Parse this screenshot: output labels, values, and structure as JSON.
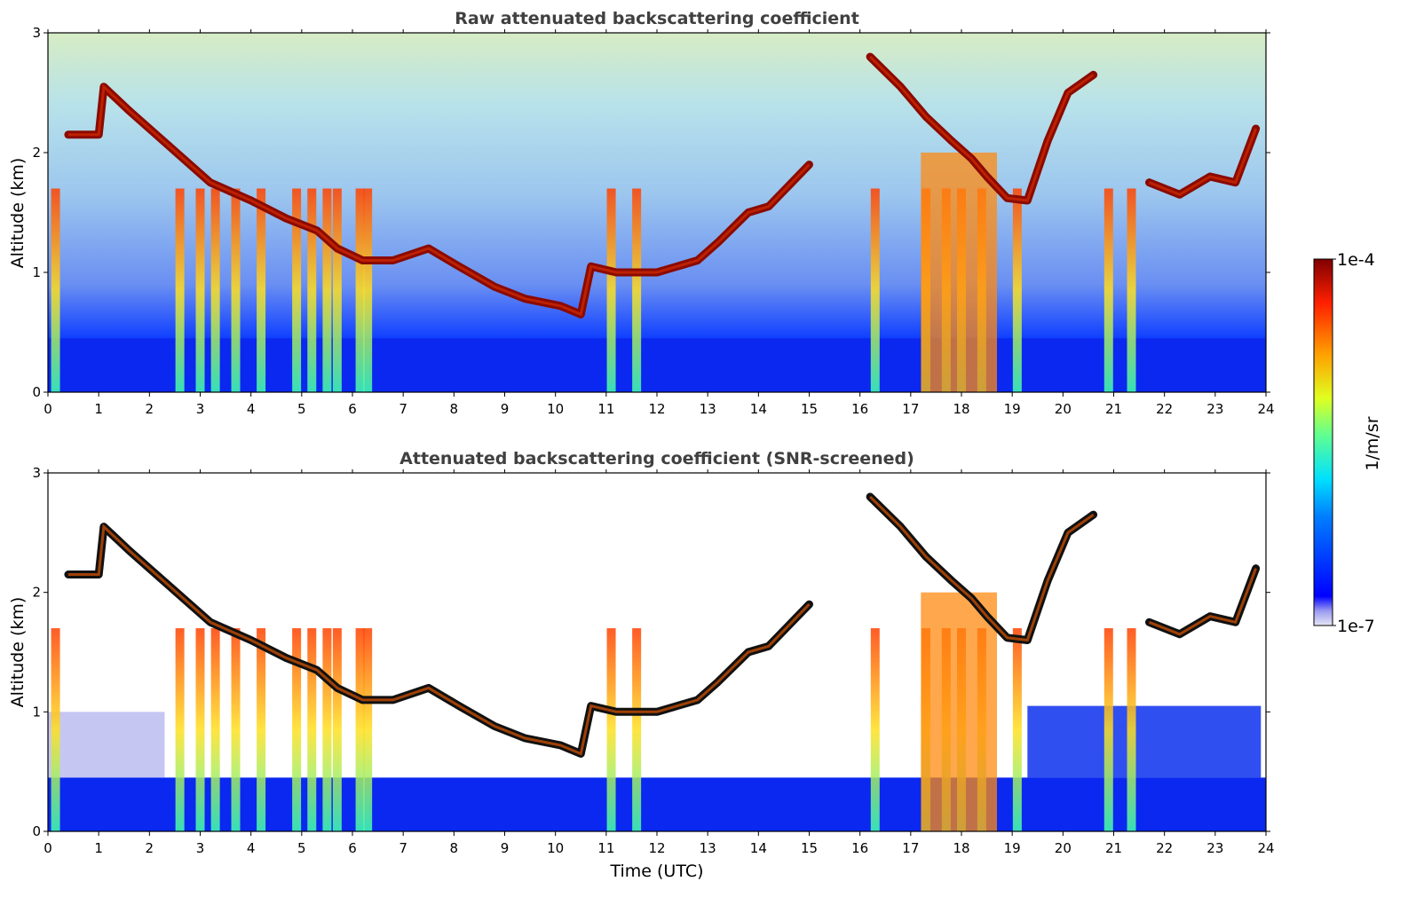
{
  "chart_data": [
    {
      "type": "heatmap",
      "title": "Raw attenuated backscattering coefficient",
      "xlabel": "",
      "ylabel": "Altitude (km)",
      "xlim": [
        0,
        24
      ],
      "ylim": [
        0,
        3
      ],
      "x_ticks": [
        "0",
        "1",
        "2",
        "3",
        "4",
        "5",
        "6",
        "7",
        "8",
        "9",
        "10",
        "11",
        "12",
        "13",
        "14",
        "15",
        "16",
        "17",
        "18",
        "19",
        "20",
        "21",
        "22",
        "23",
        "24"
      ],
      "y_ticks": [
        "0",
        "1",
        "2",
        "3"
      ],
      "features": {
        "cloud_layer": {
          "description_values": "time (h), altitude (km) of strong backscatter layer",
          "points": [
            [
              0.4,
              2.15
            ],
            [
              1.0,
              2.15
            ],
            [
              1.1,
              2.55
            ],
            [
              1.6,
              2.35
            ],
            [
              2.4,
              2.05
            ],
            [
              3.2,
              1.75
            ],
            [
              4.0,
              1.6
            ],
            [
              4.7,
              1.45
            ],
            [
              5.3,
              1.35
            ],
            [
              5.7,
              1.2
            ],
            [
              6.2,
              1.1
            ],
            [
              6.8,
              1.1
            ],
            [
              7.5,
              1.2
            ],
            [
              8.1,
              1.05
            ],
            [
              8.8,
              0.88
            ],
            [
              9.4,
              0.78
            ],
            [
              10.1,
              0.72
            ],
            [
              10.5,
              0.65
            ],
            [
              10.7,
              1.05
            ],
            [
              11.2,
              1.0
            ],
            [
              12.0,
              1.0
            ],
            [
              12.8,
              1.1
            ],
            [
              13.2,
              1.25
            ],
            [
              13.8,
              1.5
            ],
            [
              14.2,
              1.55
            ],
            [
              15.0,
              1.9
            ]
          ]
        },
        "upper_layer": {
          "points": [
            [
              16.2,
              2.8
            ],
            [
              16.8,
              2.55
            ],
            [
              17.3,
              2.3
            ],
            [
              17.8,
              2.1
            ],
            [
              18.2,
              1.95
            ],
            [
              18.5,
              1.8
            ],
            [
              18.9,
              1.62
            ],
            [
              19.3,
              1.6
            ],
            [
              19.7,
              2.1
            ],
            [
              20.1,
              2.5
            ],
            [
              20.6,
              2.65
            ]
          ]
        },
        "late_layer": {
          "points": [
            [
              21.7,
              1.75
            ],
            [
              22.3,
              1.65
            ],
            [
              22.9,
              1.8
            ],
            [
              23.4,
              1.75
            ],
            [
              23.8,
              2.2
            ]
          ]
        },
        "fall_streaks": [
          0.15,
          2.6,
          3.0,
          3.3,
          3.7,
          4.2,
          4.9,
          5.2,
          5.5,
          5.7,
          6.15,
          6.3,
          11.1,
          11.6,
          16.3,
          17.3,
          17.7,
          18.0,
          18.4,
          19.1,
          20.9,
          21.35
        ],
        "boundary_layer_top_km": 0.45
      }
    },
    {
      "type": "heatmap",
      "title": "Attenuated backscattering coefficient (SNR-screened)",
      "xlabel": "Time (UTC)",
      "ylabel": "Altitude (km)",
      "xlim": [
        0,
        24
      ],
      "ylim": [
        0,
        3
      ],
      "x_ticks": [
        "0",
        "1",
        "2",
        "3",
        "4",
        "5",
        "6",
        "7",
        "8",
        "9",
        "10",
        "11",
        "12",
        "13",
        "14",
        "15",
        "16",
        "17",
        "18",
        "19",
        "20",
        "21",
        "22",
        "23",
        "24"
      ],
      "y_ticks": [
        "0",
        "1",
        "2",
        "3"
      ]
    }
  ],
  "colorbar": {
    "label": "1/m/sr",
    "max_label": "1e-4",
    "min_label": "1e-7",
    "colormap": "jet",
    "scale": "log"
  },
  "colors": {
    "title": "#404040",
    "background": "#ffffff"
  }
}
